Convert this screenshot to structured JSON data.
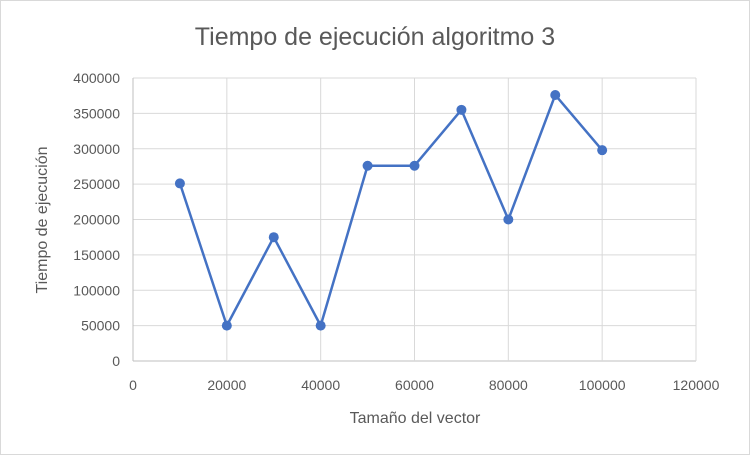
{
  "chart_data": {
    "type": "scatter",
    "title": "Tiempo de ejecución algoritmo 3",
    "xlabel": "Tamaño del vector",
    "ylabel": "Tiempo de ejecución",
    "xlim": [
      0,
      120000
    ],
    "ylim": [
      0,
      400000
    ],
    "x_ticks": [
      "0",
      "20000",
      "40000",
      "60000",
      "80000",
      "100000",
      "120000"
    ],
    "y_ticks": [
      "0",
      "50000",
      "100000",
      "150000",
      "200000",
      "250000",
      "300000",
      "350000",
      "400000"
    ],
    "grid": true,
    "legend": "none",
    "series": [
      {
        "color": "#4472c4",
        "marker": "circle",
        "line": "straight",
        "points": [
          {
            "x": 10000,
            "y": 251000
          },
          {
            "x": 20000,
            "y": 50000
          },
          {
            "x": 30000,
            "y": 175000
          },
          {
            "x": 40000,
            "y": 50000
          },
          {
            "x": 50000,
            "y": 276000
          },
          {
            "x": 60000,
            "y": 276000
          },
          {
            "x": 70000,
            "y": 355000
          },
          {
            "x": 80000,
            "y": 200000
          },
          {
            "x": 90000,
            "y": 376000
          },
          {
            "x": 100000,
            "y": 298000
          }
        ]
      }
    ]
  }
}
